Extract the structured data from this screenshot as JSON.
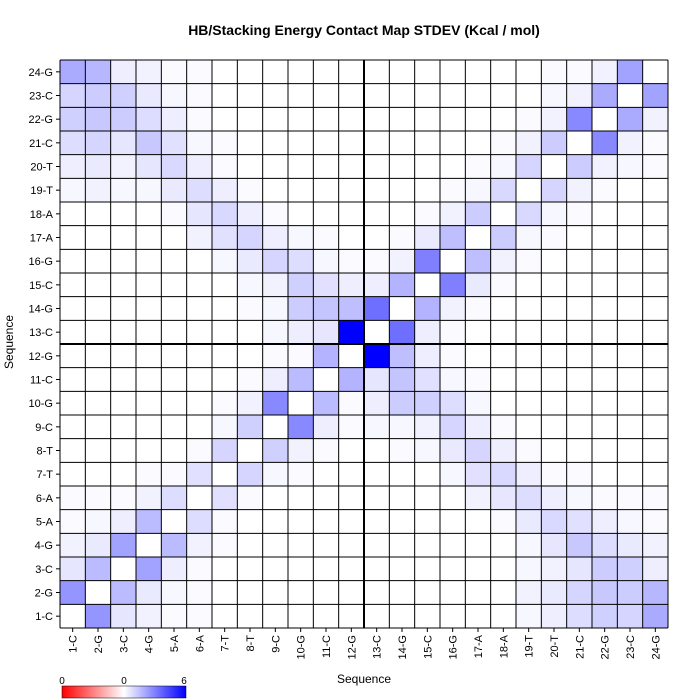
{
  "chart_data": {
    "type": "heatmap",
    "title": "HB/Stacking Energy Contact Map STDEV (Kcal / mol)",
    "xlabel": "Sequence",
    "ylabel": "Sequence",
    "labels": [
      "1-C",
      "2-G",
      "3-C",
      "4-G",
      "5-A",
      "6-A",
      "7-T",
      "8-T",
      "9-C",
      "10-G",
      "11-C",
      "12-G",
      "13-C",
      "14-G",
      "15-C",
      "16-G",
      "17-A",
      "18-A",
      "19-T",
      "20-T",
      "21-C",
      "22-G",
      "23-C",
      "24-G"
    ],
    "colorbar": {
      "min": 0,
      "mid": 0,
      "max": 6,
      "ticks": [
        "0",
        "0",
        "6"
      ],
      "colors": [
        "#ff0000",
        "#ffffff",
        "#0000ff"
      ]
    },
    "divider_after_index": 12,
    "matrix": [
      [
        0,
        2.5,
        0.6,
        0.3,
        0.1,
        0.1,
        0,
        0,
        0,
        0,
        0,
        0,
        0,
        0,
        0,
        0,
        0,
        0,
        0.2,
        0.4,
        0.8,
        1.1,
        1.0,
        2.0
      ],
      [
        2.5,
        0,
        1.6,
        0.5,
        0.2,
        0.1,
        0,
        0,
        0,
        0,
        0,
        0,
        0,
        0,
        0,
        0,
        0,
        0,
        0.3,
        0.5,
        1.0,
        1.3,
        1.2,
        1.7
      ],
      [
        0.6,
        1.6,
        0,
        2.2,
        0.4,
        0.1,
        0,
        0,
        0,
        0,
        0,
        0,
        0,
        0,
        0,
        0,
        0,
        0,
        0.2,
        0.3,
        0.6,
        1.2,
        1.1,
        0.4
      ],
      [
        0.3,
        0.5,
        2.2,
        0,
        1.6,
        0.3,
        0.1,
        0,
        0,
        0,
        0,
        0,
        0,
        0,
        0,
        0,
        0,
        0,
        0.2,
        0.6,
        1.3,
        0.8,
        0.5,
        0.3
      ],
      [
        0.1,
        0.2,
        0.4,
        1.6,
        0,
        0.8,
        0.1,
        0,
        0,
        0,
        0,
        0,
        0,
        0,
        0,
        0,
        0,
        0.1,
        0.5,
        0.9,
        0.7,
        0.4,
        0.2,
        0.1
      ],
      [
        0.1,
        0.1,
        0.1,
        0.3,
        0.8,
        0,
        0.7,
        0.1,
        0,
        0,
        0,
        0,
        0,
        0,
        0,
        0,
        0.3,
        0.6,
        0.8,
        0.4,
        0.2,
        0.1,
        0.1,
        0.1
      ],
      [
        0,
        0,
        0,
        0.1,
        0.1,
        0.7,
        0,
        1.0,
        0.2,
        0.1,
        0,
        0,
        0,
        0,
        0,
        0.2,
        0.7,
        0.9,
        0.4,
        0.1,
        0.1,
        0,
        0,
        0
      ],
      [
        0,
        0,
        0,
        0,
        0,
        0.1,
        1.0,
        0,
        1.1,
        0.3,
        0.1,
        0,
        0,
        0.1,
        0.2,
        0.5,
        1.0,
        0.4,
        0.1,
        0,
        0,
        0,
        0,
        0
      ],
      [
        0,
        0,
        0,
        0,
        0,
        0,
        0.2,
        1.1,
        0,
        2.8,
        0.4,
        0.1,
        0.2,
        0.2,
        0.3,
        1.0,
        0.4,
        0.1,
        0,
        0,
        0,
        0,
        0,
        0
      ],
      [
        0,
        0,
        0,
        0,
        0,
        0,
        0.1,
        0.3,
        2.8,
        0,
        1.6,
        0.1,
        0.4,
        1.2,
        1.1,
        0.8,
        0.2,
        0,
        0,
        0,
        0,
        0,
        0,
        0
      ],
      [
        0,
        0,
        0,
        0,
        0,
        0,
        0,
        0.1,
        0.4,
        1.6,
        0,
        1.8,
        0.6,
        1.4,
        0.7,
        0.2,
        0.1,
        0,
        0,
        0,
        0,
        0,
        0,
        0
      ],
      [
        0,
        0,
        0,
        0,
        0,
        0,
        0,
        0,
        0.1,
        0.1,
        1.8,
        0,
        6.0,
        1.5,
        0.4,
        0.1,
        0,
        0,
        0,
        0,
        0,
        0,
        0,
        0
      ],
      [
        0,
        0,
        0,
        0,
        0,
        0,
        0,
        0,
        0.2,
        0.4,
        0.6,
        6.0,
        0,
        3.4,
        0.4,
        0.1,
        0,
        0,
        0,
        0,
        0,
        0,
        0,
        0
      ],
      [
        0,
        0,
        0,
        0,
        0,
        0,
        0,
        0.1,
        0.2,
        1.2,
        1.4,
        1.5,
        3.4,
        0,
        1.8,
        0.3,
        0.1,
        0,
        0,
        0,
        0,
        0,
        0,
        0
      ],
      [
        0,
        0,
        0,
        0,
        0,
        0,
        0,
        0.2,
        0.3,
        1.1,
        0.7,
        0.4,
        0.4,
        1.8,
        0,
        3.0,
        0.5,
        0.1,
        0,
        0,
        0,
        0,
        0,
        0
      ],
      [
        0,
        0,
        0,
        0,
        0,
        0,
        0.2,
        0.5,
        1.0,
        0.8,
        0.2,
        0.1,
        0.1,
        0.3,
        3.0,
        0,
        1.5,
        0.3,
        0.1,
        0,
        0,
        0,
        0,
        0
      ],
      [
        0,
        0,
        0,
        0,
        0,
        0.3,
        0.7,
        1.0,
        0.4,
        0.2,
        0.1,
        0,
        0,
        0.1,
        0.5,
        1.5,
        0,
        1.2,
        0.2,
        0.1,
        0,
        0,
        0,
        0
      ],
      [
        0,
        0,
        0,
        0,
        0.1,
        0.6,
        0.9,
        0.4,
        0.1,
        0,
        0,
        0,
        0,
        0,
        0.1,
        0.3,
        1.2,
        0,
        0.9,
        0.2,
        0.1,
        0,
        0,
        0
      ],
      [
        0.2,
        0.3,
        0.2,
        0.2,
        0.5,
        0.8,
        0.4,
        0.1,
        0,
        0,
        0,
        0,
        0,
        0,
        0,
        0.1,
        0.2,
        0.9,
        0,
        1.0,
        0.3,
        0.1,
        0,
        0
      ],
      [
        0.4,
        0.5,
        0.3,
        0.6,
        0.9,
        0.4,
        0.1,
        0,
        0,
        0,
        0,
        0,
        0,
        0,
        0,
        0,
        0.1,
        0.2,
        1.0,
        0,
        1.2,
        0.3,
        0.2,
        0.1
      ],
      [
        0.8,
        1.0,
        0.6,
        1.3,
        0.7,
        0.2,
        0.1,
        0,
        0,
        0,
        0,
        0,
        0,
        0,
        0,
        0,
        0,
        0.1,
        0.3,
        1.2,
        0,
        2.8,
        0.3,
        0.1
      ],
      [
        1.1,
        1.3,
        1.2,
        0.8,
        0.4,
        0.1,
        0,
        0,
        0,
        0,
        0,
        0,
        0,
        0,
        0,
        0,
        0,
        0,
        0.1,
        0.3,
        2.8,
        0,
        2.0,
        0.3
      ],
      [
        1.0,
        1.2,
        1.1,
        0.5,
        0.2,
        0.1,
        0,
        0,
        0,
        0,
        0,
        0,
        0,
        0,
        0,
        0,
        0,
        0,
        0,
        0.2,
        0.3,
        2.0,
        0,
        2.2
      ],
      [
        2.0,
        1.7,
        0.4,
        0.3,
        0.1,
        0.1,
        0,
        0,
        0,
        0,
        0,
        0,
        0,
        0,
        0,
        0,
        0,
        0,
        0,
        0.1,
        0.1,
        0.3,
        2.2,
        0
      ]
    ]
  }
}
